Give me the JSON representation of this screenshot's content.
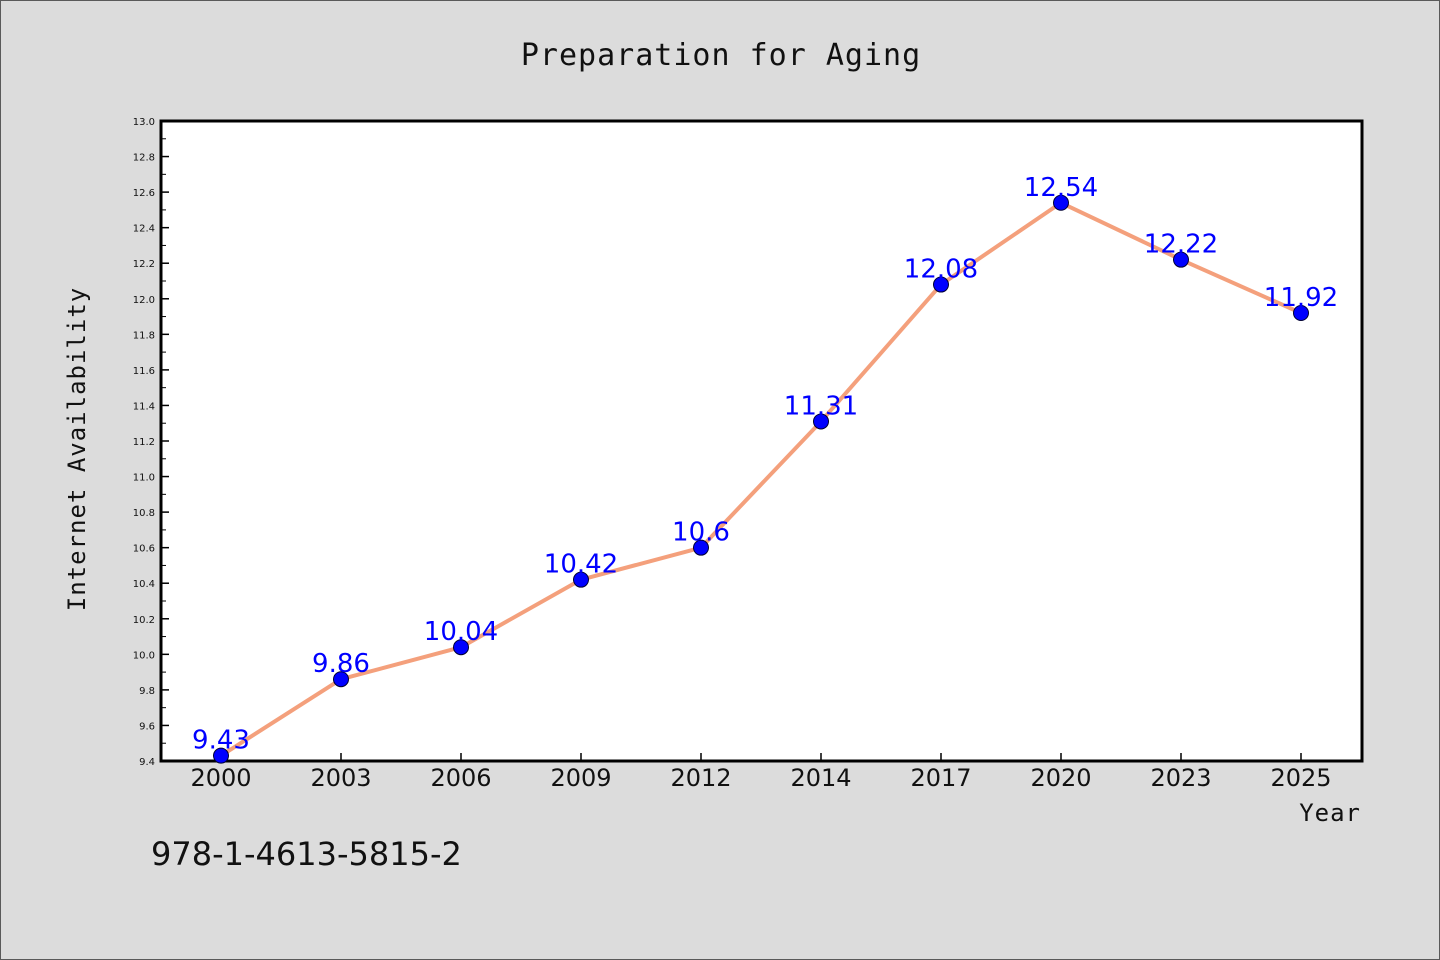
{
  "chart_data": {
    "type": "line",
    "title": "Preparation for Aging",
    "xlabel": "Year",
    "ylabel": "Internet Availability",
    "categories": [
      "2000",
      "2003",
      "2006",
      "2009",
      "2012",
      "2014",
      "2017",
      "2020",
      "2023",
      "2025"
    ],
    "series": [
      {
        "values": [
          9.43,
          9.86,
          10.04,
          10.42,
          10.6,
          11.31,
          12.08,
          12.54,
          12.22,
          11.92
        ],
        "data_labels": [
          "9.43",
          "9.86",
          "10.04",
          "10.42",
          "10.6",
          "11.31",
          "12.08",
          "12.54",
          "12.22",
          "11.92"
        ],
        "line_color": "#f4a07c",
        "marker_color": "#0000ff"
      }
    ],
    "ylim": [
      9.4,
      13.0
    ],
    "yticks": [
      "9.4",
      "9.6",
      "9.8",
      "10.0",
      "10.2",
      "10.4",
      "10.6",
      "10.8",
      "11.0",
      "11.2",
      "11.4",
      "11.6",
      "11.8",
      "12.0",
      "12.2",
      "12.4",
      "12.6",
      "12.8",
      "13.0"
    ],
    "grid": false,
    "legend": "none"
  },
  "annotation": "978-1-4613-5815-2",
  "colors": {
    "background": "#dcdcdc",
    "plot_background": "#ffffff",
    "line": "#f4a07c",
    "marker": "#0000ff",
    "data_label": "#0000ff"
  }
}
